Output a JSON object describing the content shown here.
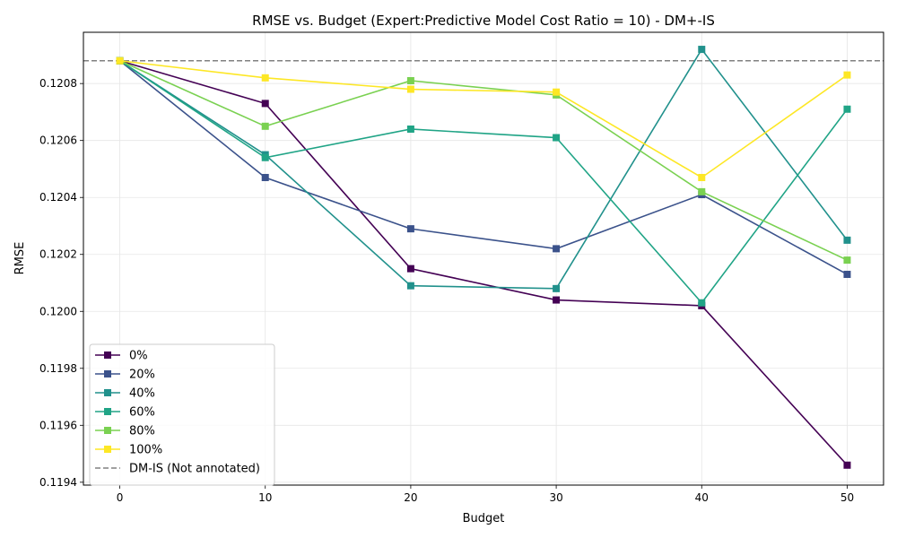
{
  "chart_data": {
    "type": "line",
    "title": "RMSE vs. Budget (Expert:Predictive Model Cost Ratio = 10) - DM+-IS",
    "xlabel": "Budget",
    "ylabel": "RMSE",
    "x": [
      0,
      10,
      20,
      30,
      40,
      50
    ],
    "xticks": [
      "0",
      "10",
      "20",
      "30",
      "40",
      "50"
    ],
    "yticks": [
      "0.1194",
      "0.1196",
      "0.1198",
      "0.1200",
      "0.1202",
      "0.1204",
      "0.1206",
      "0.1208"
    ],
    "xlim": [
      -2.5,
      52.5
    ],
    "ylim": [
      0.11939,
      0.12098
    ],
    "grid": true,
    "legend_position": "lower-left",
    "series": [
      {
        "name": "0%",
        "color": "#440154",
        "marker": "square",
        "values": [
          0.12088,
          0.12073,
          0.12015,
          0.12004,
          0.12002,
          0.11946
        ]
      },
      {
        "name": "20%",
        "color": "#3b528b",
        "marker": "square",
        "values": [
          0.12088,
          0.12047,
          0.12029,
          0.12022,
          0.12041,
          0.12013
        ]
      },
      {
        "name": "40%",
        "color": "#21918c",
        "marker": "square",
        "values": [
          0.12088,
          0.12055,
          0.12009,
          0.12008,
          0.12092,
          0.12025
        ]
      },
      {
        "name": "60%",
        "color": "#20a486",
        "marker": "square",
        "values": [
          0.12088,
          0.12054,
          0.12064,
          0.12061,
          0.12003,
          0.12071
        ]
      },
      {
        "name": "80%",
        "color": "#7ad151",
        "marker": "square",
        "values": [
          0.12088,
          0.12065,
          0.12081,
          0.12076,
          0.12042,
          0.12018
        ]
      },
      {
        "name": "100%",
        "color": "#fde725",
        "marker": "square",
        "values": [
          0.12088,
          0.12082,
          0.12078,
          0.12077,
          0.12047,
          0.12083
        ]
      }
    ],
    "reference_lines": [
      {
        "name": "DM-IS (Not annotated)",
        "y": 0.12088,
        "color": "#808080",
        "style": "dashed"
      }
    ]
  }
}
